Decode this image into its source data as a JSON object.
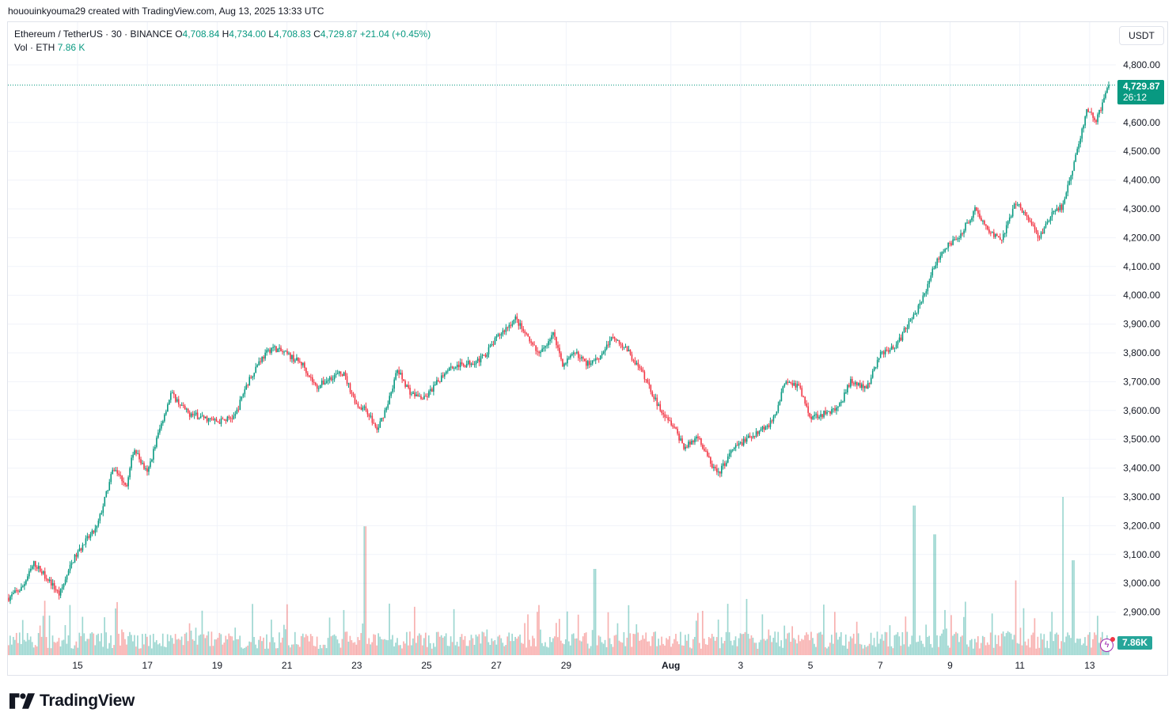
{
  "header": {
    "credit": "hououinkyouma29 created with TradingView.com, Aug 13, 2025 13:33 UTC"
  },
  "legend": {
    "symbol": "Ethereum / TetherUS · 30 · BINANCE",
    "o_label": "O",
    "o_value": "4,708.84",
    "h_label": "H",
    "h_value": "4,734.00",
    "l_label": "L",
    "l_value": "4,708.83",
    "c_label": "C",
    "c_value": "4,729.87",
    "change": "+21.04 (+0.45%)",
    "vol_label": "Vol · ETH",
    "vol_value": "7.86 K"
  },
  "price_scale": {
    "currency": "USDT",
    "last_price": "4,729.87",
    "countdown": "26:12",
    "vol_badge": "7.86K"
  },
  "brand": {
    "name": "TradingView"
  },
  "colors": {
    "up": "#089981",
    "down": "#f23645",
    "vol_up": "#26a69a",
    "vol_down": "#ef5350",
    "grid": "#f0f3fa"
  },
  "chart_data": {
    "type": "candlestick",
    "title": "Ethereum / TetherUS · 30 · BINANCE",
    "ylim": [
      2800,
      4850
    ],
    "y_ticks": [
      "2,900.00",
      "3,000.00",
      "3,100.00",
      "3,200.00",
      "3,300.00",
      "3,400.00",
      "3,500.00",
      "3,600.00",
      "3,700.00",
      "3,800.00",
      "3,900.00",
      "4,000.00",
      "4,100.00",
      "4,200.00",
      "4,300.00",
      "4,400.00",
      "4,500.00",
      "4,600.00",
      "4,800.00"
    ],
    "y_tick_values": [
      2900,
      3000,
      3100,
      3200,
      3300,
      3400,
      3500,
      3600,
      3700,
      3800,
      3900,
      4000,
      4100,
      4200,
      4300,
      4400,
      4500,
      4600,
      4800
    ],
    "x_ticks": [
      "15",
      "17",
      "19",
      "21",
      "23",
      "25",
      "27",
      "29",
      "Aug",
      "3",
      "5",
      "7",
      "9",
      "11",
      "13"
    ],
    "x_tick_days": [
      2,
      4,
      6,
      8,
      10,
      12,
      14,
      16,
      19,
      21,
      23,
      25,
      27,
      29,
      31
    ],
    "start": "Jul 13 ~18:00 UTC",
    "end": "Aug 13 13:33 UTC",
    "close_path": [
      [
        0,
        2950
      ],
      [
        0.4,
        2985
      ],
      [
        0.75,
        3070
      ],
      [
        1.2,
        3010
      ],
      [
        1.5,
        2960
      ],
      [
        1.9,
        3080
      ],
      [
        2.3,
        3150
      ],
      [
        2.6,
        3190
      ],
      [
        3.1,
        3400
      ],
      [
        3.5,
        3340
      ],
      [
        3.7,
        3470
      ],
      [
        4.1,
        3380
      ],
      [
        4.4,
        3510
      ],
      [
        4.8,
        3660
      ],
      [
        5.3,
        3590
      ],
      [
        5.6,
        3580
      ],
      [
        6.2,
        3560
      ],
      [
        6.7,
        3580
      ],
      [
        7.0,
        3680
      ],
      [
        7.4,
        3770
      ],
      [
        7.8,
        3820
      ],
      [
        8.3,
        3790
      ],
      [
        8.7,
        3760
      ],
      [
        9.1,
        3680
      ],
      [
        9.6,
        3720
      ],
      [
        9.9,
        3730
      ],
      [
        10.3,
        3620
      ],
      [
        10.6,
        3600
      ],
      [
        10.9,
        3530
      ],
      [
        11.2,
        3620
      ],
      [
        11.5,
        3740
      ],
      [
        11.9,
        3660
      ],
      [
        12.3,
        3640
      ],
      [
        12.7,
        3700
      ],
      [
        13.0,
        3750
      ],
      [
        13.5,
        3760
      ],
      [
        14.0,
        3780
      ],
      [
        14.5,
        3860
      ],
      [
        15.0,
        3920
      ],
      [
        15.3,
        3860
      ],
      [
        15.7,
        3790
      ],
      [
        16.1,
        3870
      ],
      [
        16.4,
        3760
      ],
      [
        16.8,
        3800
      ],
      [
        17.1,
        3760
      ],
      [
        17.5,
        3790
      ],
      [
        17.9,
        3860
      ],
      [
        18.3,
        3810
      ],
      [
        18.8,
        3720
      ],
      [
        19.2,
        3620
      ],
      [
        19.6,
        3560
      ],
      [
        20.0,
        3470
      ],
      [
        20.4,
        3510
      ],
      [
        20.8,
        3410
      ],
      [
        21.0,
        3380
      ],
      [
        21.4,
        3460
      ],
      [
        21.8,
        3500
      ],
      [
        22.2,
        3530
      ],
      [
        22.6,
        3560
      ],
      [
        23.0,
        3710
      ],
      [
        23.4,
        3680
      ],
      [
        23.7,
        3580
      ],
      [
        24.2,
        3590
      ],
      [
        24.6,
        3620
      ],
      [
        24.9,
        3700
      ],
      [
        25.4,
        3680
      ],
      [
        25.8,
        3800
      ],
      [
        26.3,
        3830
      ],
      [
        26.6,
        3900
      ],
      [
        27.0,
        3970
      ],
      [
        27.3,
        4080
      ],
      [
        27.7,
        4170
      ],
      [
        28.1,
        4200
      ],
      [
        28.6,
        4300
      ],
      [
        29.0,
        4220
      ],
      [
        29.4,
        4200
      ],
      [
        29.8,
        4320
      ],
      [
        30.2,
        4260
      ],
      [
        30.5,
        4200
      ],
      [
        30.9,
        4290
      ],
      [
        31.2,
        4310
      ],
      [
        31.5,
        4450
      ],
      [
        31.9,
        4640
      ],
      [
        32.2,
        4610
      ],
      [
        32.4,
        4680
      ],
      [
        32.55,
        4729.87
      ]
    ],
    "volume_spikes": [
      [
        10.55,
        3198
      ],
      [
        17.35,
        3050
      ],
      [
        26.8,
        3270
      ],
      [
        27.4,
        3170
      ],
      [
        29.8,
        3010
      ],
      [
        31.2,
        3300
      ],
      [
        31.5,
        3080
      ]
    ],
    "last_close": 4729.87,
    "last_volume": "7.86K"
  }
}
